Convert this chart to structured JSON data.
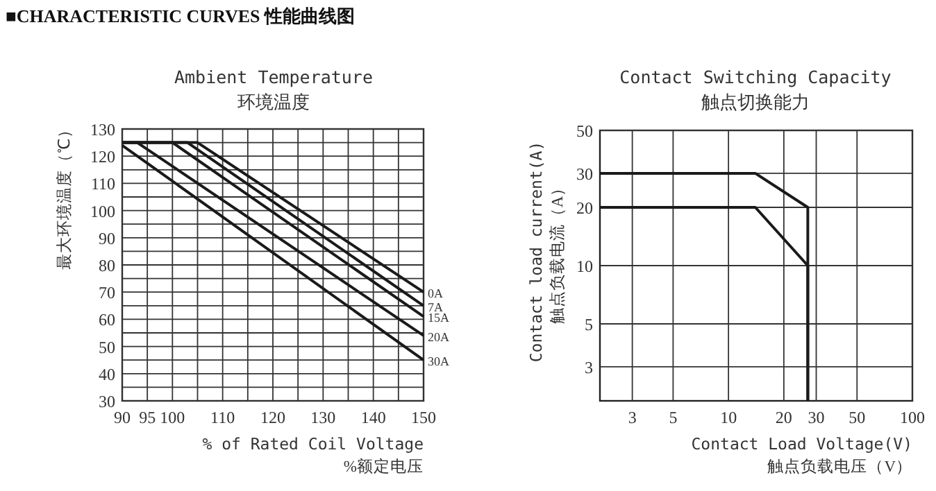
{
  "chart_data": [
    {
      "type": "line",
      "title": "Ambient Temperature",
      "subtitle": "环境温度",
      "xlabel": "% of Rated Coil Voltage\n%额定电压",
      "ylabel": "最大环境温度（℃）",
      "annotations": [
        "■CHARACTERISTIC CURVES 性能曲线图"
      ],
      "xlim": [
        90,
        150
      ],
      "xticks": [
        90,
        95,
        100,
        {
          "value": 105,
          "label": null
        },
        110,
        {
          "value": 115,
          "label": null
        },
        120,
        {
          "value": 125,
          "label": null
        },
        130,
        {
          "value": 135,
          "label": null
        },
        140,
        {
          "value": 145,
          "label": null
        },
        150
      ],
      "ylim": [
        30,
        130
      ],
      "yticks": [
        30,
        {
          "value": 35,
          "label": null
        },
        40,
        {
          "value": 45,
          "label": null
        },
        50,
        {
          "value": 55,
          "label": null
        },
        60,
        {
          "value": 65,
          "label": null
        },
        70,
        {
          "value": 75,
          "label": null
        },
        80,
        {
          "value": 85,
          "label": null
        },
        90,
        {
          "value": 95,
          "label": null
        },
        100,
        {
          "value": 105,
          "label": null
        },
        110,
        {
          "value": 115,
          "label": null
        },
        120,
        {
          "value": 125,
          "label": null
        },
        130
      ],
      "grid": true,
      "series": [
        {
          "name": "0A",
          "color": "#1a1a1a",
          "x": [
            90,
            105,
            150
          ],
          "values": [
            125,
            125,
            70
          ]
        },
        {
          "name": "7A",
          "color": "#1a1a1a",
          "x": [
            90,
            103,
            150
          ],
          "values": [
            125,
            125,
            65
          ]
        },
        {
          "name": "15A",
          "color": "#1a1a1a",
          "x": [
            90,
            100,
            150
          ],
          "values": [
            125,
            125,
            61
          ]
        },
        {
          "name": "20A",
          "color": "#1a1a1a",
          "x": [
            90,
            93,
            150
          ],
          "values": [
            125,
            125,
            54
          ]
        },
        {
          "name": "30A",
          "color": "#1a1a1a",
          "x": [
            90,
            150
          ],
          "values": [
            124,
            45
          ]
        }
      ]
    },
    {
      "type": "line",
      "title": "Contact Switching Capacity",
      "subtitle": "触点切换能力",
      "xlabel": "Contact Load Voltage(V)\n触点负载电压（V）",
      "ylabel": "Contact load current(A)\n触点负载电流（A）",
      "log": "xy",
      "xlim": [
        2,
        100
      ],
      "xticks": [
        3,
        5,
        10,
        20,
        30,
        50,
        100
      ],
      "ylim": [
        2,
        50
      ],
      "yticks": [
        3,
        5,
        10,
        20,
        30,
        50
      ],
      "grid": true,
      "series": [
        {
          "color": "#1a1a1a",
          "x": [
            2,
            14,
            27,
            27
          ],
          "values": [
            30,
            30,
            20,
            2
          ]
        },
        {
          "color": "#1a1a1a",
          "x": [
            2,
            14,
            27,
            27
          ],
          "values": [
            20,
            20,
            10,
            2
          ]
        }
      ]
    }
  ]
}
